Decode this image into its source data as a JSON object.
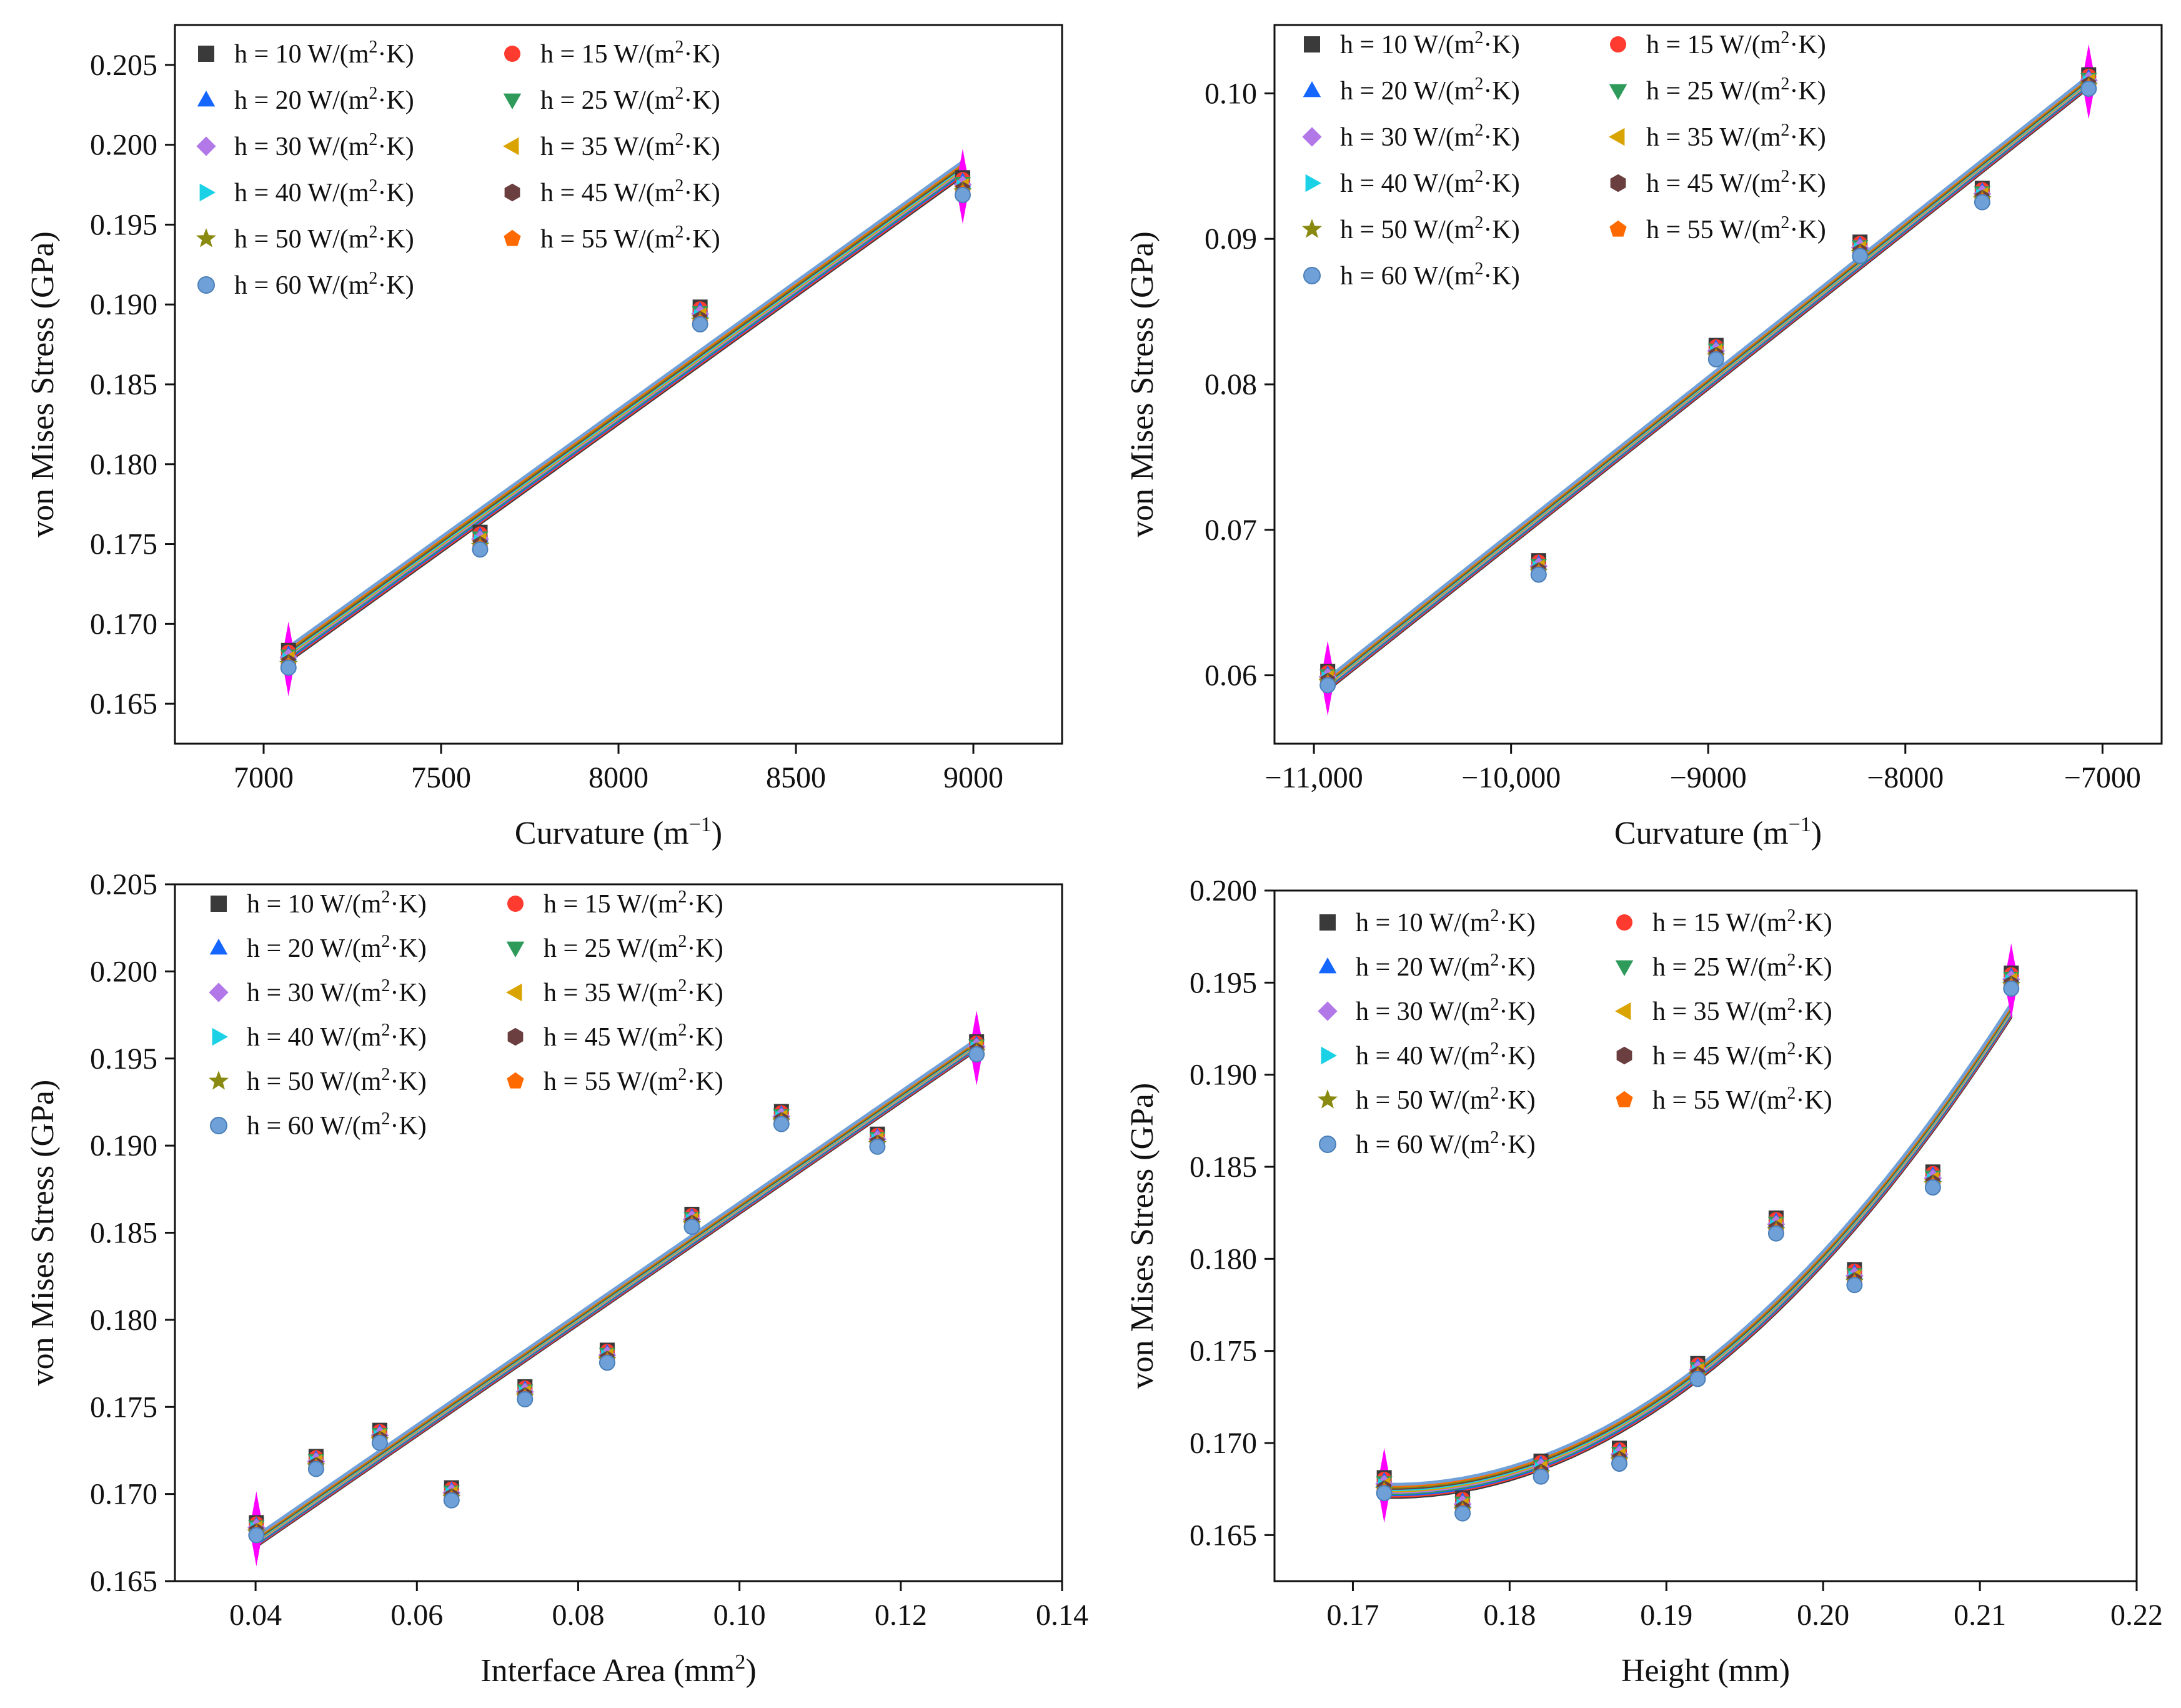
{
  "colors": {
    "10": "#3a3a3a",
    "15": "#ff3b30",
    "20": "#1565ff",
    "25": "#2e9b5a",
    "30": "#b278e8",
    "35": "#d9a300",
    "40": "#1ad1e6",
    "45": "#6b3f3f",
    "50": "#8a8a10",
    "55": "#ff6a00",
    "60": "#6fa0d8",
    "highlight": "#ff00ff"
  },
  "legend": {
    "series": [
      {
        "key": "10",
        "prefix": "h = 10 W/(m",
        "sup": "2",
        "suffix": "·K)",
        "marker": "square-icon"
      },
      {
        "key": "15",
        "prefix": "h = 15 W/(m",
        "sup": "2",
        "suffix": "·K)",
        "marker": "circle-icon"
      },
      {
        "key": "20",
        "prefix": "h = 20 W/(m",
        "sup": "2",
        "suffix": "·K)",
        "marker": "triangle-up-icon"
      },
      {
        "key": "25",
        "prefix": "h = 25 W/(m",
        "sup": "2",
        "suffix": "·K)",
        "marker": "triangle-down-icon"
      },
      {
        "key": "30",
        "prefix": "h = 30 W/(m",
        "sup": "2",
        "suffix": "·K)",
        "marker": "diamond-icon"
      },
      {
        "key": "35",
        "prefix": "h = 35 W/(m",
        "sup": "2",
        "suffix": "·K)",
        "marker": "triangle-left-icon"
      },
      {
        "key": "40",
        "prefix": "h = 40 W/(m",
        "sup": "2",
        "suffix": "·K)",
        "marker": "triangle-right-icon"
      },
      {
        "key": "45",
        "prefix": "h = 45 W/(m",
        "sup": "2",
        "suffix": "·K)",
        "marker": "hexagon-icon"
      },
      {
        "key": "50",
        "prefix": "h = 50 W/(m",
        "sup": "2",
        "suffix": "·K)",
        "marker": "star-icon"
      },
      {
        "key": "55",
        "prefix": "h = 55 W/(m",
        "sup": "2",
        "suffix": "·K)",
        "marker": "pentagon-icon"
      },
      {
        "key": "60",
        "prefix": "h = 60 W/(m",
        "sup": "2",
        "suffix": "·K)",
        "marker": "sphere-icon"
      }
    ]
  },
  "chart_data": [
    {
      "type": "scatter",
      "title": "",
      "xlabel": "Curvature (m",
      "xlabel_sup": "−1",
      "xlabel_suffix": ")",
      "ylabel": "von Mises Stress (GPa)",
      "xlim": [
        6750,
        9250
      ],
      "ylim": [
        0.1625,
        0.2075
      ],
      "xticks": [
        7000,
        7500,
        8000,
        8500,
        9000
      ],
      "xtick_labels": [
        "7000",
        "7500",
        "8000",
        "8500",
        "9000"
      ],
      "yticks": [
        0.165,
        0.17,
        0.175,
        0.18,
        0.185,
        0.19,
        0.195,
        0.2,
        0.205
      ],
      "ytick_labels": [
        "0.165",
        "0.170",
        "0.175",
        "0.180",
        "0.185",
        "0.190",
        "0.195",
        "0.200",
        "0.205"
      ],
      "x": [
        7070,
        7610,
        8230,
        8970
      ],
      "y": [
        0.1678,
        0.1752,
        0.1893,
        0.1974
      ],
      "highlight_x": [
        7070,
        8970
      ],
      "fit": {
        "kind": "linear",
        "x0": 7070,
        "y0": 0.1681,
        "x1": 8970,
        "y1": 0.1985
      },
      "spread": 0.0009
    },
    {
      "type": "scatter",
      "title": "",
      "xlabel": "Curvature (m",
      "xlabel_sup": "−1",
      "xlabel_suffix": ")",
      "ylabel": "von Mises Stress (GPa)",
      "xlim": [
        -11200,
        -6700
      ],
      "ylim": [
        0.0553,
        0.1047
      ],
      "xticks": [
        -11000,
        -10000,
        -9000,
        -8000,
        -7000
      ],
      "xtick_labels": [
        "−11,000",
        "−10,000",
        "−9000",
        "−8000",
        "−7000"
      ],
      "yticks": [
        0.06,
        0.07,
        0.08,
        0.09,
        0.1
      ],
      "ytick_labels": [
        "0.06",
        "0.07",
        "0.08",
        "0.09",
        "0.10"
      ],
      "x": [
        -10930,
        -9860,
        -8960,
        -8230,
        -7610,
        -7070
      ],
      "y": [
        0.0598,
        0.0674,
        0.0822,
        0.0893,
        0.093,
        0.1008
      ],
      "highlight_x": [
        -10930,
        -7070
      ],
      "fit": {
        "kind": "linear",
        "x0": -10930,
        "y0": 0.0594,
        "x1": -7070,
        "y1": 0.1008
      },
      "spread": 0.0008
    },
    {
      "type": "scatter",
      "title": "",
      "xlabel": "Interface Area (mm",
      "xlabel_sup": "2",
      "xlabel_suffix": ")",
      "ylabel": "von Mises Stress (GPa)",
      "xlim": [
        0.03,
        0.14
      ],
      "ylim": [
        0.165,
        0.205
      ],
      "xticks": [
        0.04,
        0.06,
        0.08,
        0.1,
        0.12,
        0.14
      ],
      "xtick_labels": [
        "0.04",
        "0.06",
        "0.08",
        "0.10",
        "0.12",
        "0.14"
      ],
      "yticks": [
        0.165,
        0.17,
        0.175,
        0.18,
        0.185,
        0.19,
        0.195,
        0.2,
        0.205
      ],
      "ytick_labels": [
        "0.165",
        "0.170",
        "0.175",
        "0.180",
        "0.185",
        "0.190",
        "0.195",
        "0.200",
        "0.205"
      ],
      "x": [
        0.0401,
        0.0475,
        0.0554,
        0.0643,
        0.0734,
        0.0836,
        0.0941,
        0.1052,
        0.1171,
        0.1294
      ],
      "y": [
        0.168,
        0.1718,
        0.1733,
        0.17,
        0.1758,
        0.1779,
        0.1857,
        0.1916,
        0.1903,
        0.1956
      ],
      "highlight_x": [
        0.0401,
        0.1294
      ],
      "fit": {
        "kind": "linear",
        "x0": 0.0401,
        "y0": 0.1673,
        "x1": 0.1294,
        "y1": 0.1958
      },
      "spread": 0.0006
    },
    {
      "type": "scatter",
      "title": "",
      "xlabel": "Height (mm)",
      "xlabel_sup": "",
      "xlabel_suffix": "",
      "ylabel": "von Mises Stress (GPa)",
      "xlim": [
        0.165,
        0.22
      ],
      "ylim": [
        0.1625,
        0.2
      ],
      "xticks": [
        0.17,
        0.18,
        0.19,
        0.2,
        0.21,
        0.22
      ],
      "xtick_labels": [
        "0.17",
        "0.18",
        "0.19",
        "0.20",
        "0.21",
        "0.22"
      ],
      "yticks": [
        0.165,
        0.17,
        0.175,
        0.18,
        0.185,
        0.19,
        0.195,
        0.2
      ],
      "ytick_labels": [
        "0.165",
        "0.170",
        "0.175",
        "0.180",
        "0.185",
        "0.190",
        "0.195",
        "0.200"
      ],
      "x": [
        0.172,
        0.177,
        0.182,
        0.187,
        0.192,
        0.197,
        0.202,
        0.207,
        0.212
      ],
      "y": [
        0.1677,
        0.1666,
        0.1686,
        0.1693,
        0.1739,
        0.1818,
        0.179,
        0.1843,
        0.1951
      ],
      "highlight_x": [
        0.172,
        0.212
      ],
      "fit": {
        "kind": "quadratic",
        "x0": 0.172,
        "x1": 0.212,
        "vertex_x": 0.1725,
        "vertex_y": 0.1674,
        "end_y": 0.1935
      },
      "spread": 0.0007
    }
  ]
}
